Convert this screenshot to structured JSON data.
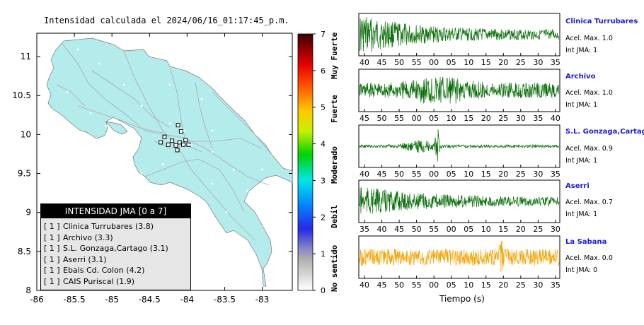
{
  "map": {
    "title": "Intensidad calculada el 2024/06/16_01:17:45_p.m.",
    "lon_ticks": [
      "-86",
      "-85.5",
      "-85",
      "-84.5",
      "-84",
      "-83.5",
      "-83"
    ],
    "lat_ticks": [
      "11",
      "10.5",
      "10",
      "9.5",
      "9",
      "8.5",
      "8"
    ],
    "land_color": "#b4ecec",
    "stations": [
      {
        "lon": -84.12,
        "lat": 10.12
      },
      {
        "lon": -84.08,
        "lat": 10.04
      },
      {
        "lon": -84.3,
        "lat": 9.97
      },
      {
        "lon": -84.2,
        "lat": 9.92
      },
      {
        "lon": -84.35,
        "lat": 9.9
      },
      {
        "lon": -84.02,
        "lat": 9.93
      },
      {
        "lon": -84.1,
        "lat": 9.9
      },
      {
        "lon": -84.25,
        "lat": 9.87
      },
      {
        "lon": -84.05,
        "lat": 9.87
      },
      {
        "lon": -83.98,
        "lat": 9.87
      },
      {
        "lon": -84.15,
        "lat": 9.86
      },
      {
        "lon": -84.13,
        "lat": 9.8
      }
    ]
  },
  "colorbar": {
    "ticks": [
      "0",
      "1",
      "2",
      "3",
      "4",
      "5",
      "6",
      "7"
    ],
    "labels": [
      "No sentido",
      "Debil",
      "Moderado",
      "Fuerte",
      "Muy Fuerte"
    ]
  },
  "legend": {
    "title": "INTENSIDAD JMA [0 a 7]",
    "items": [
      {
        "tag": "[ 1 ]",
        "label": "Clinica Turrubares (3.8)"
      },
      {
        "tag": "[ 1 ]",
        "label": "Archivo (3.3)"
      },
      {
        "tag": "[ 1 ]",
        "label": "S.L. Gonzaga,Cartago (3.1)"
      },
      {
        "tag": "[ 1 ]",
        "label": "Aserri (3.1)"
      },
      {
        "tag": "[ 1 ]",
        "label": "Ebais Cd. Colon (4.2)"
      },
      {
        "tag": "[ 1 ]",
        "label": "CAIS Puriscal (1.9)"
      }
    ]
  },
  "waveforms": {
    "xlabel": "Tiempo (s)",
    "panels": [
      {
        "name": "Clinica Turrubares",
        "acel": "Acel. Max. 1.0",
        "int": "Int JMA: 1",
        "color": "#0b6e0b",
        "ticks": [
          "40",
          "45",
          "50",
          "55",
          "00",
          "05",
          "10",
          "15",
          "20",
          "25",
          "30",
          "35"
        ]
      },
      {
        "name": "Archivo",
        "acel": "Acel. Max. 1.0",
        "int": "Int JMA: 1",
        "color": "#0b6e0b",
        "ticks": [
          "45",
          "50",
          "55",
          "00",
          "05",
          "10",
          "15",
          "20",
          "25",
          "30",
          "35",
          "40"
        ]
      },
      {
        "name": "S.L. Gonzaga,Cartago",
        "acel": "Acel. Max. 0.9",
        "int": "Int JMA: 1",
        "color": "#0b6e0b",
        "ticks": [
          "40",
          "45",
          "50",
          "55",
          "00",
          "05",
          "10",
          "15",
          "20",
          "25",
          "30",
          "35"
        ]
      },
      {
        "name": "Aserri",
        "acel": "Acel. Max. 0.7",
        "int": "Int JMA: 1",
        "color": "#0b6e0b",
        "ticks": [
          "35",
          "40",
          "45",
          "50",
          "55",
          "00",
          "05",
          "10",
          "15",
          "20",
          "25",
          "30"
        ]
      },
      {
        "name": "La Sabana",
        "acel": "Acel. Max. 0.0",
        "int": "Int JMA: 0",
        "color": "#f5a300",
        "ticks": [
          "40",
          "45",
          "50",
          "55",
          "00",
          "05",
          "10",
          "15",
          "20",
          "25",
          "30",
          "35"
        ]
      }
    ]
  },
  "chart_data": {
    "type": "line",
    "title": "Intensidad calculada el 2024/06/16_01:17:45_p.m.",
    "xlabel": "Tiempo (s)",
    "xlim_map": [
      -86,
      -82.6
    ],
    "ylim_map": [
      8,
      11.3
    ],
    "colorbar_range": [
      0,
      7
    ],
    "series": [
      {
        "name": "Clinica Turrubares",
        "acel_max": 1.0,
        "int_jma": 1,
        "legend_value": 3.8
      },
      {
        "name": "Archivo",
        "acel_max": 1.0,
        "int_jma": 1,
        "legend_value": 3.3
      },
      {
        "name": "S.L. Gonzaga,Cartago",
        "acel_max": 0.9,
        "int_jma": 1,
        "legend_value": 3.1
      },
      {
        "name": "Aserri",
        "acel_max": 0.7,
        "int_jma": 1,
        "legend_value": 3.1
      },
      {
        "name": "La Sabana",
        "acel_max": 0.0,
        "int_jma": 0
      }
    ]
  }
}
